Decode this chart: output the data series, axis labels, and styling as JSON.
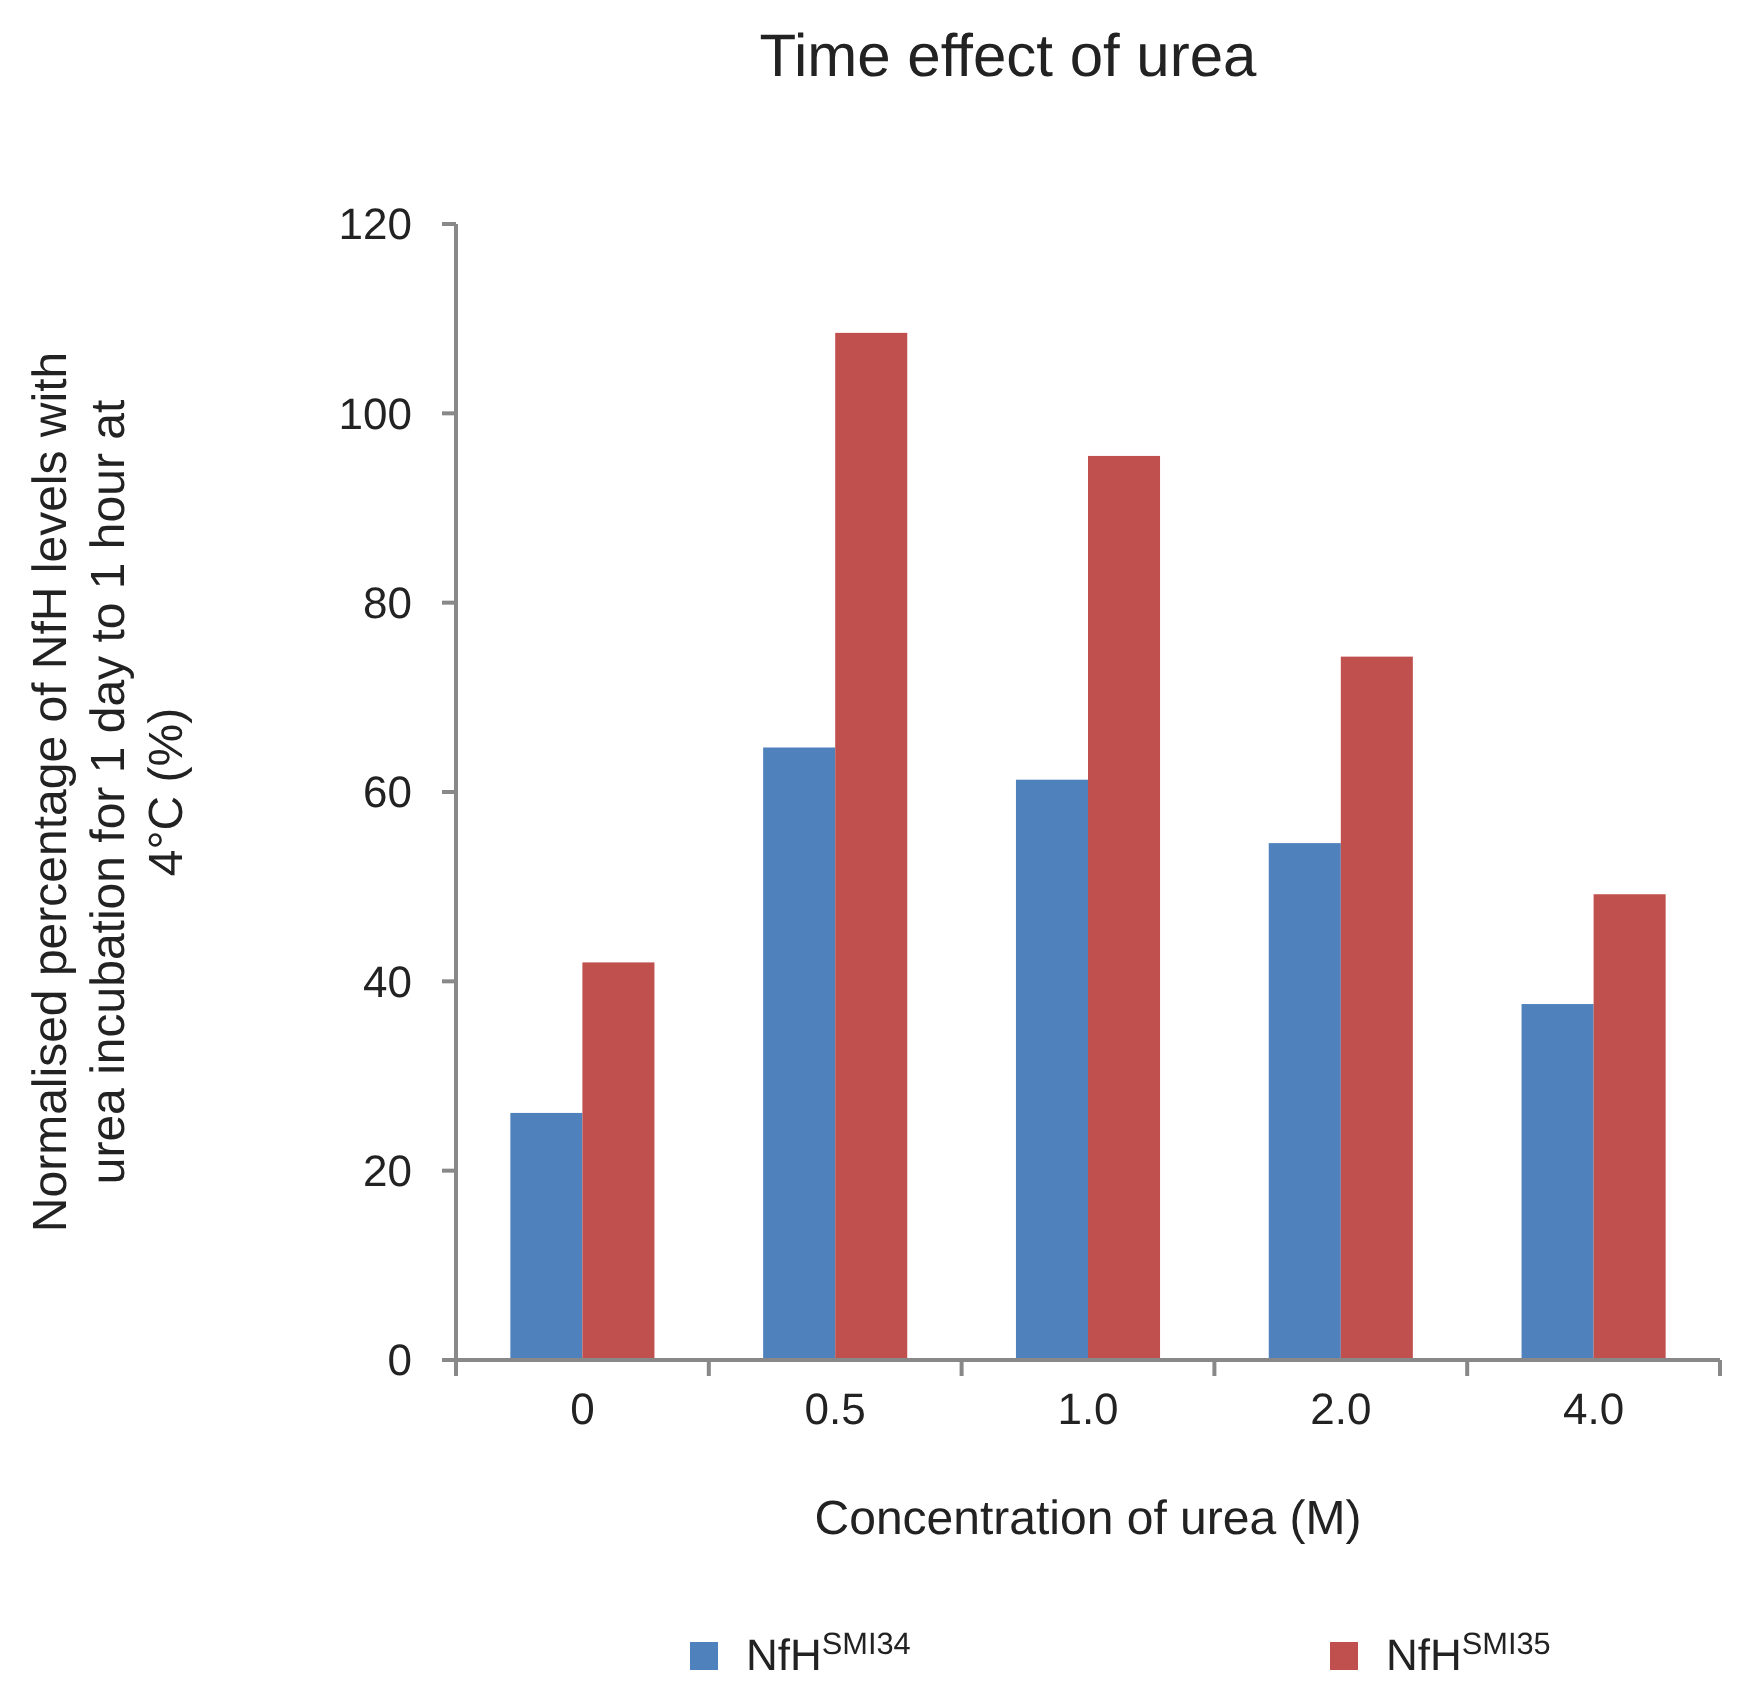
{
  "chart_data": {
    "type": "bar",
    "title": "Time effect of urea",
    "xlabel": "Concentration of urea (M)",
    "ylabel": "Normalised percentage of NfH levels with urea incubation for 1 day  to 1 hour at 4°C (%)",
    "categories": [
      "0",
      "0.5",
      "1.0",
      "2.0",
      "4.0"
    ],
    "series": [
      {
        "name": "NfH$^{SMI34}$",
        "color": "#4f81bd",
        "values": [
          26.1,
          64.7,
          61.3,
          54.6,
          37.6
        ]
      },
      {
        "name": "NfH$^{SMI35}$",
        "color": "#c0504d",
        "values": [
          42.0,
          108.5,
          95.5,
          74.3,
          49.2
        ]
      }
    ],
    "ylim": [
      0,
      120
    ],
    "yticks": [
      0,
      20,
      40,
      60,
      80,
      100,
      120
    ],
    "grid": false,
    "legend": "bottom"
  }
}
